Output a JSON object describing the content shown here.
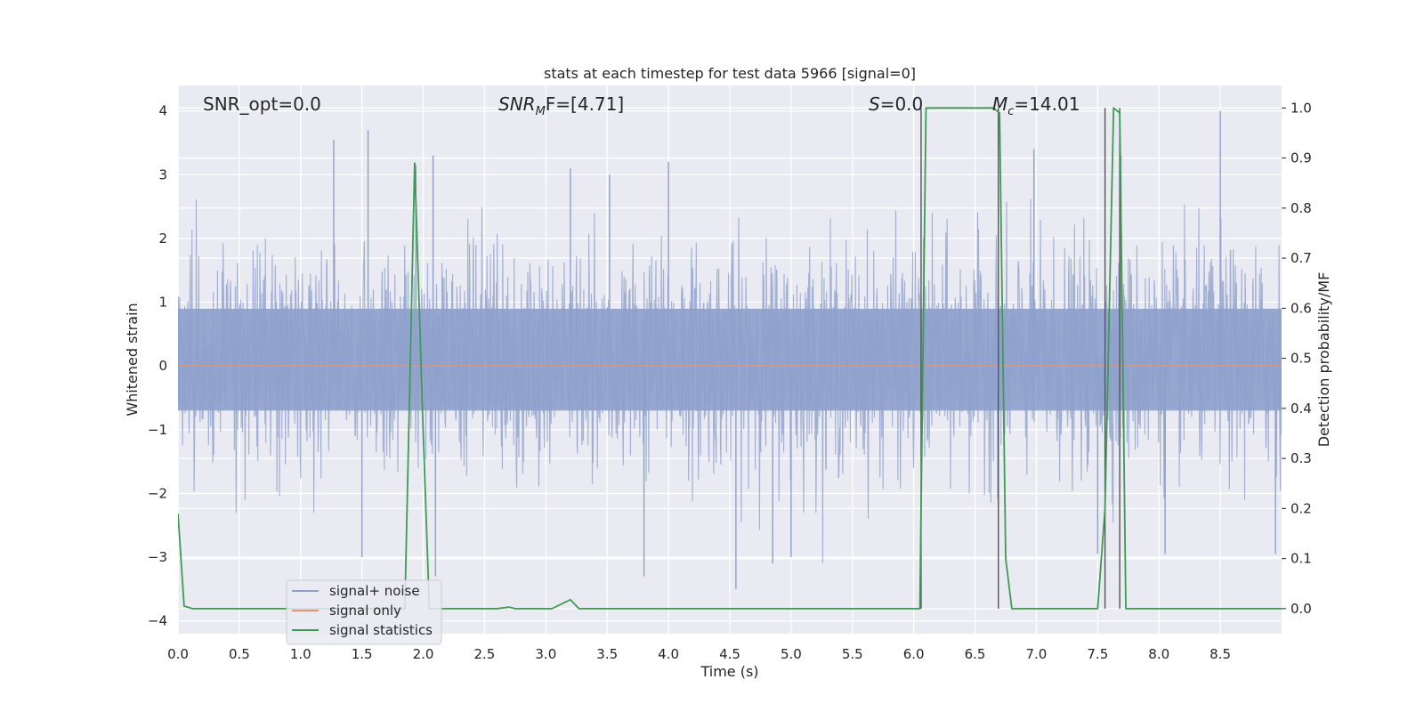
{
  "chart_data": {
    "type": "line",
    "title": "stats at each timestep for test data 5966 [signal=0]",
    "xlabel": "Time (s)",
    "ylabel_left": "Whitened strain",
    "ylabel_right": "Detection probability/MF",
    "xlim": [
      0.0,
      9.0
    ],
    "ylim_left": [
      -4.2,
      4.4
    ],
    "ylim_right": [
      -0.05,
      1.045
    ],
    "xticks": [
      0.0,
      0.5,
      1.0,
      1.5,
      2.0,
      2.5,
      3.0,
      3.5,
      4.0,
      4.5,
      5.0,
      5.5,
      6.0,
      6.5,
      7.0,
      7.5,
      8.0,
      8.5
    ],
    "xtick_labels": [
      "0.0",
      "0.5",
      "1.0",
      "1.5",
      "2.0",
      "2.5",
      "3.0",
      "3.5",
      "4.0",
      "4.5",
      "5.0",
      "5.5",
      "6.0",
      "6.5",
      "7.0",
      "7.5",
      "8.0",
      "8.5"
    ],
    "yticks_left": [
      -4,
      -3,
      -2,
      -1,
      0,
      1,
      2,
      3,
      4
    ],
    "ytick_labels_left": [
      "−4",
      "−3",
      "−2",
      "−1",
      "0",
      "1",
      "2",
      "3",
      "4"
    ],
    "yticks_right": [
      0.0,
      0.1,
      0.2,
      0.3,
      0.4,
      0.5,
      0.6,
      0.7,
      0.8,
      0.9,
      1.0
    ],
    "ytick_labels_right": [
      "0.0",
      "0.1",
      "0.2",
      "0.3",
      "0.4",
      "0.5",
      "0.6",
      "0.7",
      "0.8",
      "0.9",
      "1.0"
    ],
    "annotations": {
      "snr_opt": "SNR_opt=0.0",
      "snr_mf_main": "SNR",
      "snr_mf_sub": "M",
      "snr_mf_rest": "F=[4.71]",
      "s_main": "S",
      "s_rest": "=0.0",
      "mc_main": "M",
      "mc_sub": "c",
      "mc_rest": "=14.01"
    },
    "legend": {
      "position": "lower-left",
      "entries": [
        {
          "label": "signal+ noise",
          "color": "#8da0cb"
        },
        {
          "label": "signal only",
          "color": "#e5956a"
        },
        {
          "label": "signal statistics",
          "color": "#3d9b54"
        }
      ]
    },
    "series": [
      {
        "name": "signal+ noise",
        "axis": "left",
        "description": "whitened noise trace spanning roughly -3.5 to 3.7",
        "color": "#8da0cb",
        "envelope_core": [
          -0.7,
          0.9
        ],
        "spikes": [
          [
            1.27,
            3.55
          ],
          [
            1.55,
            3.7
          ],
          [
            1.94,
            3.15
          ],
          [
            2.08,
            3.3
          ],
          [
            3.2,
            3.1
          ],
          [
            4.0,
            3.2
          ],
          [
            8.5,
            4.0
          ],
          [
            6.98,
            3.4
          ],
          [
            7.69,
            3.3
          ],
          [
            3.52,
            3.0
          ],
          [
            1.5,
            -3.0
          ],
          [
            2.1,
            -3.3
          ],
          [
            3.8,
            -3.3
          ],
          [
            4.55,
            -3.5
          ],
          [
            4.85,
            -3.1
          ],
          [
            5.0,
            -3.0
          ],
          [
            7.5,
            -2.95
          ],
          [
            8.05,
            -2.95
          ],
          [
            8.95,
            -2.95
          ]
        ]
      },
      {
        "name": "signal only",
        "axis": "left",
        "color": "#e5956a",
        "x": [
          0.0,
          9.0
        ],
        "y": [
          0.0,
          0.0
        ]
      },
      {
        "name": "signal statistics",
        "axis": "right",
        "color": "#3d9b54",
        "x": [
          0.0,
          0.05,
          0.12,
          1.85,
          1.93,
          2.0,
          2.05,
          2.6,
          2.7,
          2.75,
          3.05,
          3.2,
          3.27,
          6.05,
          6.1,
          6.15,
          6.65,
          6.7,
          6.75,
          6.8,
          7.5,
          7.56,
          7.63,
          7.68,
          7.73,
          7.77,
          9.0
        ],
        "y": [
          0.19,
          0.005,
          0.0,
          0.0,
          0.89,
          0.35,
          0.0,
          0.0,
          0.003,
          0.0,
          0.0,
          0.018,
          0.0,
          0.0,
          1.0,
          1.0,
          1.0,
          0.99,
          0.1,
          0.0,
          0.0,
          0.2,
          1.0,
          0.99,
          0.0,
          0.0,
          0.0
        ]
      }
    ],
    "vertical_markers": [
      6.06,
      6.69,
      7.56,
      7.68
    ]
  }
}
